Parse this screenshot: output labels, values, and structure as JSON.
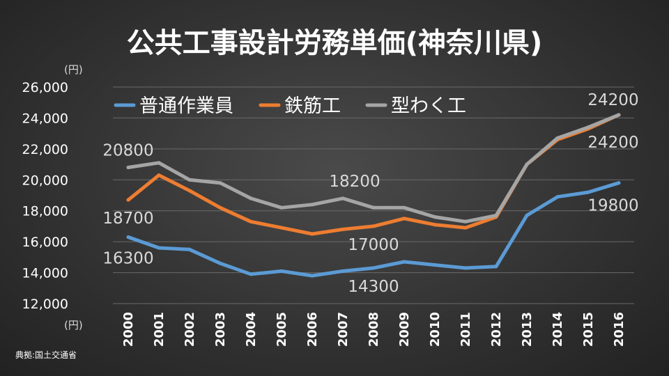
{
  "title": "公共工事設計労務単価(神奈川県)",
  "source": "典拠:国土交通省",
  "chart_data": {
    "type": "line",
    "ylabel_unit_top": "(円)",
    "ylabel_unit_bottom": "(円)",
    "ylim": [
      12000,
      26000
    ],
    "yticks": [
      "12,000",
      "14,000",
      "16,000",
      "18,000",
      "20,000",
      "22,000",
      "24,000",
      "26,000"
    ],
    "ytick_values": [
      12000,
      14000,
      16000,
      18000,
      20000,
      22000,
      24000,
      26000
    ],
    "grid": true,
    "legend_position": "top",
    "categories": [
      "2000",
      "2001",
      "2002",
      "2003",
      "2004",
      "2005",
      "2006",
      "2007",
      "2008",
      "2009",
      "2010",
      "2011",
      "2012",
      "2013",
      "2014",
      "2015",
      "2016"
    ],
    "series": [
      {
        "name": "普通作業員",
        "color": "#5b9bd5",
        "values": [
          16300,
          15600,
          15500,
          14600,
          13900,
          14100,
          13800,
          14100,
          14300,
          14700,
          14500,
          14300,
          14400,
          17700,
          18900,
          19200,
          19800
        ]
      },
      {
        "name": "鉄筋工",
        "color": "#ed7d31",
        "values": [
          18700,
          20300,
          19300,
          18200,
          17300,
          16900,
          16500,
          16800,
          17000,
          17500,
          17100,
          16900,
          17600,
          21000,
          22600,
          23300,
          24200
        ]
      },
      {
        "name": "型わく工",
        "color": "#a5a5a5",
        "values": [
          20800,
          21100,
          20000,
          19800,
          18800,
          18200,
          18400,
          18800,
          18200,
          18200,
          17600,
          17300,
          17700,
          21000,
          22700,
          23400,
          24200
        ]
      }
    ],
    "annotations": [
      {
        "text": "20800"
      },
      {
        "text": "18700"
      },
      {
        "text": "16300"
      },
      {
        "text": "18200"
      },
      {
        "text": "17000"
      },
      {
        "text": "14300"
      },
      {
        "text": "24200"
      },
      {
        "text": "24200"
      },
      {
        "text": "19800"
      }
    ]
  }
}
